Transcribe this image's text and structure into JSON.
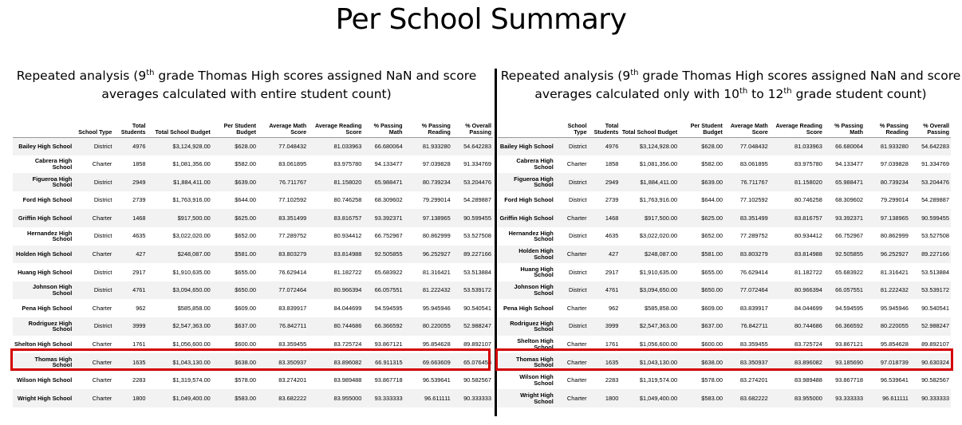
{
  "title": "Per School Summary",
  "left_caption": {
    "part1": "Repeated analysis (9",
    "sup1": "th",
    "part2": " grade Thomas High scores assigned NaN and score averages calculated with entire student count)"
  },
  "right_caption": {
    "part1": "Repeated analysis (9",
    "sup1": "th",
    "part2": " grade Thomas High scores assigned NaN and score averages calculated only with 10",
    "sup2": "th",
    "part3": " to 12",
    "sup3": "th",
    "part4": " grade student count)"
  },
  "columns": [
    "",
    "School Type",
    "Total Students",
    "Total School Budget",
    "Per Student Budget",
    "Average Math Score",
    "Average Reading Score",
    "% Passing Math",
    "% Passing Reading",
    "% Overall Passing"
  ],
  "left_table": [
    [
      "Bailey High School",
      "District",
      "4976",
      "$3,124,928.00",
      "$628.00",
      "77.048432",
      "81.033963",
      "66.680064",
      "81.933280",
      "54.642283"
    ],
    [
      "Cabrera High School",
      "Charter",
      "1858",
      "$1,081,356.00",
      "$582.00",
      "83.061895",
      "83.975780",
      "94.133477",
      "97.039828",
      "91.334769"
    ],
    [
      "Figueroa High School",
      "District",
      "2949",
      "$1,884,411.00",
      "$639.00",
      "76.711767",
      "81.158020",
      "65.988471",
      "80.739234",
      "53.204476"
    ],
    [
      "Ford High School",
      "District",
      "2739",
      "$1,763,916.00",
      "$644.00",
      "77.102592",
      "80.746258",
      "68.309602",
      "79.299014",
      "54.289887"
    ],
    [
      "Griffin High School",
      "Charter",
      "1468",
      "$917,500.00",
      "$625.00",
      "83.351499",
      "83.816757",
      "93.392371",
      "97.138965",
      "90.599455"
    ],
    [
      "Hernandez High School",
      "District",
      "4635",
      "$3,022,020.00",
      "$652.00",
      "77.289752",
      "80.934412",
      "66.752967",
      "80.862999",
      "53.527508"
    ],
    [
      "Holden High School",
      "Charter",
      "427",
      "$248,087.00",
      "$581.00",
      "83.803279",
      "83.814988",
      "92.505855",
      "96.252927",
      "89.227166"
    ],
    [
      "Huang High School",
      "District",
      "2917",
      "$1,910,635.00",
      "$655.00",
      "76.629414",
      "81.182722",
      "65.683922",
      "81.316421",
      "53.513884"
    ],
    [
      "Johnson High School",
      "District",
      "4761",
      "$3,094,650.00",
      "$650.00",
      "77.072464",
      "80.966394",
      "66.057551",
      "81.222432",
      "53.539172"
    ],
    [
      "Pena High School",
      "Charter",
      "962",
      "$585,858.00",
      "$609.00",
      "83.839917",
      "84.044699",
      "94.594595",
      "95.945946",
      "90.540541"
    ],
    [
      "Rodriguez High School",
      "District",
      "3999",
      "$2,547,363.00",
      "$637.00",
      "76.842711",
      "80.744686",
      "66.366592",
      "80.220055",
      "52.988247"
    ],
    [
      "Shelton High School",
      "Charter",
      "1761",
      "$1,056,600.00",
      "$600.00",
      "83.359455",
      "83.725724",
      "93.867121",
      "95.854628",
      "89.892107"
    ],
    [
      "Thomas High School",
      "Charter",
      "1635",
      "$1,043,130.00",
      "$638.00",
      "83.350937",
      "83.896082",
      "66.911315",
      "69.663609",
      "65.076453"
    ],
    [
      "Wilson High School",
      "Charter",
      "2283",
      "$1,319,574.00",
      "$578.00",
      "83.274201",
      "83.989488",
      "93.867718",
      "96.539641",
      "90.582567"
    ],
    [
      "Wright High School",
      "Charter",
      "1800",
      "$1,049,400.00",
      "$583.00",
      "83.682222",
      "83.955000",
      "93.333333",
      "96.611111",
      "90.333333"
    ]
  ],
  "right_table": [
    [
      "Bailey High School",
      "District",
      "4976",
      "$3,124,928.00",
      "$628.00",
      "77.048432",
      "81.033963",
      "66.680064",
      "81.933280",
      "54.642283"
    ],
    [
      "Cabrera High School",
      "Charter",
      "1858",
      "$1,081,356.00",
      "$582.00",
      "83.061895",
      "83.975780",
      "94.133477",
      "97.039828",
      "91.334769"
    ],
    [
      "Figueroa High School",
      "District",
      "2949",
      "$1,884,411.00",
      "$639.00",
      "76.711767",
      "81.158020",
      "65.988471",
      "80.739234",
      "53.204476"
    ],
    [
      "Ford High School",
      "District",
      "2739",
      "$1,763,916.00",
      "$644.00",
      "77.102592",
      "80.746258",
      "68.309602",
      "79.299014",
      "54.289887"
    ],
    [
      "Griffin High School",
      "Charter",
      "1468",
      "$917,500.00",
      "$625.00",
      "83.351499",
      "83.816757",
      "93.392371",
      "97.138965",
      "90.599455"
    ],
    [
      "Hernandez High School",
      "District",
      "4635",
      "$3,022,020.00",
      "$652.00",
      "77.289752",
      "80.934412",
      "66.752967",
      "80.862999",
      "53.527508"
    ],
    [
      "Holden High School",
      "Charter",
      "427",
      "$248,087.00",
      "$581.00",
      "83.803279",
      "83.814988",
      "92.505855",
      "96.252927",
      "89.227166"
    ],
    [
      "Huang High School",
      "District",
      "2917",
      "$1,910,635.00",
      "$655.00",
      "76.629414",
      "81.182722",
      "65.683922",
      "81.316421",
      "53.513884"
    ],
    [
      "Johnson High School",
      "District",
      "4761",
      "$3,094,650.00",
      "$650.00",
      "77.072464",
      "80.966394",
      "66.057551",
      "81.222432",
      "53.539172"
    ],
    [
      "Pena High School",
      "Charter",
      "962",
      "$585,858.00",
      "$609.00",
      "83.839917",
      "84.044699",
      "94.594595",
      "95.945946",
      "90.540541"
    ],
    [
      "Rodriguez High School",
      "District",
      "3999",
      "$2,547,363.00",
      "$637.00",
      "76.842711",
      "80.744686",
      "66.366592",
      "80.220055",
      "52.988247"
    ],
    [
      "Shelton High School",
      "Charter",
      "1761",
      "$1,056,600.00",
      "$600.00",
      "83.359455",
      "83.725724",
      "93.867121",
      "95.854628",
      "89.892107"
    ],
    [
      "Thomas High School",
      "Charter",
      "1635",
      "$1,043,130.00",
      "$638.00",
      "83.350937",
      "83.896082",
      "93.185690",
      "97.018739",
      "90.630324"
    ],
    [
      "Wilson High School",
      "Charter",
      "2283",
      "$1,319,574.00",
      "$578.00",
      "83.274201",
      "83.989488",
      "93.867718",
      "96.539641",
      "90.582567"
    ],
    [
      "Wright High School",
      "Charter",
      "1800",
      "$1,049,400.00",
      "$583.00",
      "83.682222",
      "83.955000",
      "93.333333",
      "96.611111",
      "90.333333"
    ]
  ],
  "highlight_color": "#d40000"
}
